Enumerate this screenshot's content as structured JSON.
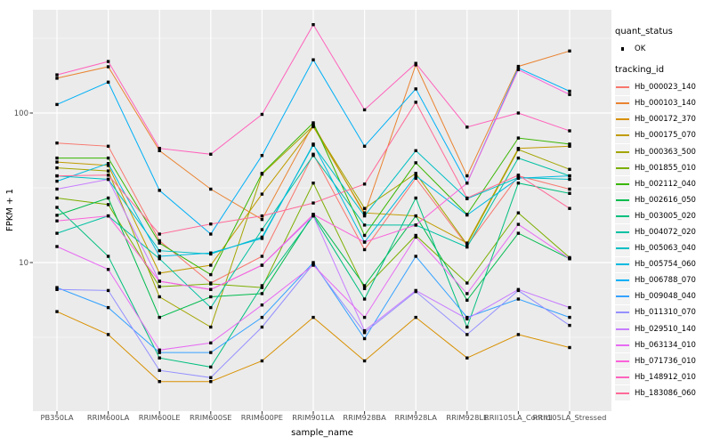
{
  "style": {
    "panel_bg": "#EBEBEB",
    "gridline": "#FFFFFF",
    "legend_key_bg": "#F2F2F2",
    "tick_label_color": "#4D4D4D",
    "axis_title_color": "#000000",
    "point_color": "#000000"
  },
  "chart_data": {
    "type": "line",
    "title": "",
    "xlabel": "sample_name",
    "ylabel": "FPKM + 1",
    "y_scale": "log10",
    "ylim": [
      1,
      490
    ],
    "grid": "on",
    "legend_position": "right",
    "y_major_ticks": [
      {
        "label": "100",
        "value": 100
      },
      {
        "label": "10",
        "value": 10
      }
    ],
    "y_minor_gridlines": [
      3.162,
      31.62,
      316.23
    ],
    "categories": [
      "PB350LA",
      "RRIM600LA",
      "RRIM600LE",
      "RRIM600SE",
      "RRIM600PE",
      "RRIM901LA",
      "RRIM928BA",
      "RRIM928LA",
      "RRIM928LE",
      "RRII105LA_Control",
      "RRII105LA_Stressed"
    ],
    "quant_legend": {
      "title": "quant_status",
      "items": [
        {
          "label": "OK",
          "marker": "black-square-point"
        }
      ]
    },
    "series_legend_title": "tracking_id",
    "series": [
      {
        "name": "Hb_000023_140",
        "color": "#F8766D",
        "values": [
          63,
          60,
          14,
          7.3,
          11,
          53,
          12.2,
          36.6,
          13,
          38,
          31
        ]
      },
      {
        "name": "Hb_000103_140",
        "color": "#EA8331",
        "values": [
          171,
          204,
          56,
          31,
          19.4,
          84,
          21,
          210,
          38,
          205,
          260
        ]
      },
      {
        "name": "Hb_000172_370",
        "color": "#D89000",
        "values": [
          4.7,
          3.3,
          1.6,
          1.6,
          2.2,
          4.3,
          2.2,
          4.3,
          2.3,
          3.3,
          2.7
        ]
      },
      {
        "name": "Hb_000175_070",
        "color": "#C09B00",
        "values": [
          47,
          44.6,
          8.5,
          9.6,
          28.7,
          81,
          21.5,
          20.5,
          13.5,
          58,
          60
        ]
      },
      {
        "name": "Hb_000363_500",
        "color": "#A3A500",
        "values": [
          43,
          41,
          5.9,
          3.7,
          39,
          82,
          23,
          39.5,
          13.2,
          57,
          42
        ]
      },
      {
        "name": "Hb_001855_010",
        "color": "#7CAE00",
        "values": [
          27,
          24.4,
          6.9,
          7.2,
          6.8,
          34,
          6.7,
          15.2,
          7.3,
          21.5,
          10.8
        ]
      },
      {
        "name": "Hb_002112_040",
        "color": "#39B600",
        "values": [
          50,
          50,
          13.5,
          8.3,
          39.5,
          86,
          15.2,
          46.5,
          21,
          68,
          62
        ]
      },
      {
        "name": "Hb_002616_050",
        "color": "#00BB4E",
        "values": [
          20.7,
          27,
          4.3,
          5.9,
          6.2,
          21,
          7.0,
          20.5,
          5.6,
          15.7,
          10.6
        ]
      },
      {
        "name": "Hb_003005_020",
        "color": "#00BF7D",
        "values": [
          23.4,
          11,
          2.3,
          2.0,
          7.0,
          20.5,
          5.7,
          27,
          3.7,
          34,
          29
        ]
      },
      {
        "name": "Hb_004072_020",
        "color": "#00C1A3",
        "values": [
          15.7,
          20.5,
          10.6,
          5.0,
          16.6,
          52,
          17.8,
          17.8,
          12.7,
          50,
          38
        ]
      },
      {
        "name": "Hb_005063_040",
        "color": "#00BFC4",
        "values": [
          38,
          36,
          12.0,
          11.4,
          14.8,
          61,
          20.5,
          56,
          26.7,
          37,
          36
        ]
      },
      {
        "name": "Hb_005754_060",
        "color": "#00BAE0",
        "values": [
          35,
          46,
          11.0,
          11.6,
          14.5,
          62,
          13.7,
          38,
          20.8,
          36.6,
          38
        ]
      },
      {
        "name": "Hb_006788_070",
        "color": "#00B0F6",
        "values": [
          114,
          161,
          30.4,
          15.5,
          52,
          227,
          60,
          145,
          34,
          200,
          140
        ]
      },
      {
        "name": "Hb_009048_040",
        "color": "#35A2FF",
        "values": [
          6.8,
          5.0,
          2.5,
          2.5,
          4.3,
          10,
          3.1,
          11.0,
          4.3,
          5.7,
          4.3
        ]
      },
      {
        "name": "Hb_011310_070",
        "color": "#9590FF",
        "values": [
          6.6,
          6.5,
          1.9,
          1.7,
          3.7,
          9.8,
          3.4,
          6.4,
          3.3,
          6.5,
          3.8
        ]
      },
      {
        "name": "Hb_029510_140",
        "color": "#C77CFF",
        "values": [
          31,
          36,
          7.5,
          6.6,
          9.6,
          20.5,
          3.5,
          6.5,
          4.2,
          6.6,
          5.0
        ]
      },
      {
        "name": "Hb_063134_010",
        "color": "#E76BF3",
        "values": [
          12.8,
          9.0,
          2.6,
          2.9,
          5.2,
          9.6,
          4.3,
          14.8,
          6.2,
          18,
          10.6
        ]
      },
      {
        "name": "Hb_071736_010",
        "color": "#FA62DB",
        "values": [
          19,
          20.5,
          7.5,
          6.6,
          9.6,
          21,
          13.7,
          17.8,
          34,
          195,
          133
        ]
      },
      {
        "name": "Hb_148912_010",
        "color": "#FF62BC",
        "values": [
          180,
          221,
          58,
          53,
          98,
          390,
          105,
          215,
          80.5,
          100,
          76
        ]
      },
      {
        "name": "Hb_183086_060",
        "color": "#FF6A98",
        "values": [
          38,
          38.4,
          15.5,
          18.1,
          20.5,
          25,
          33.5,
          118,
          27,
          38.4,
          23
        ]
      }
    ]
  }
}
